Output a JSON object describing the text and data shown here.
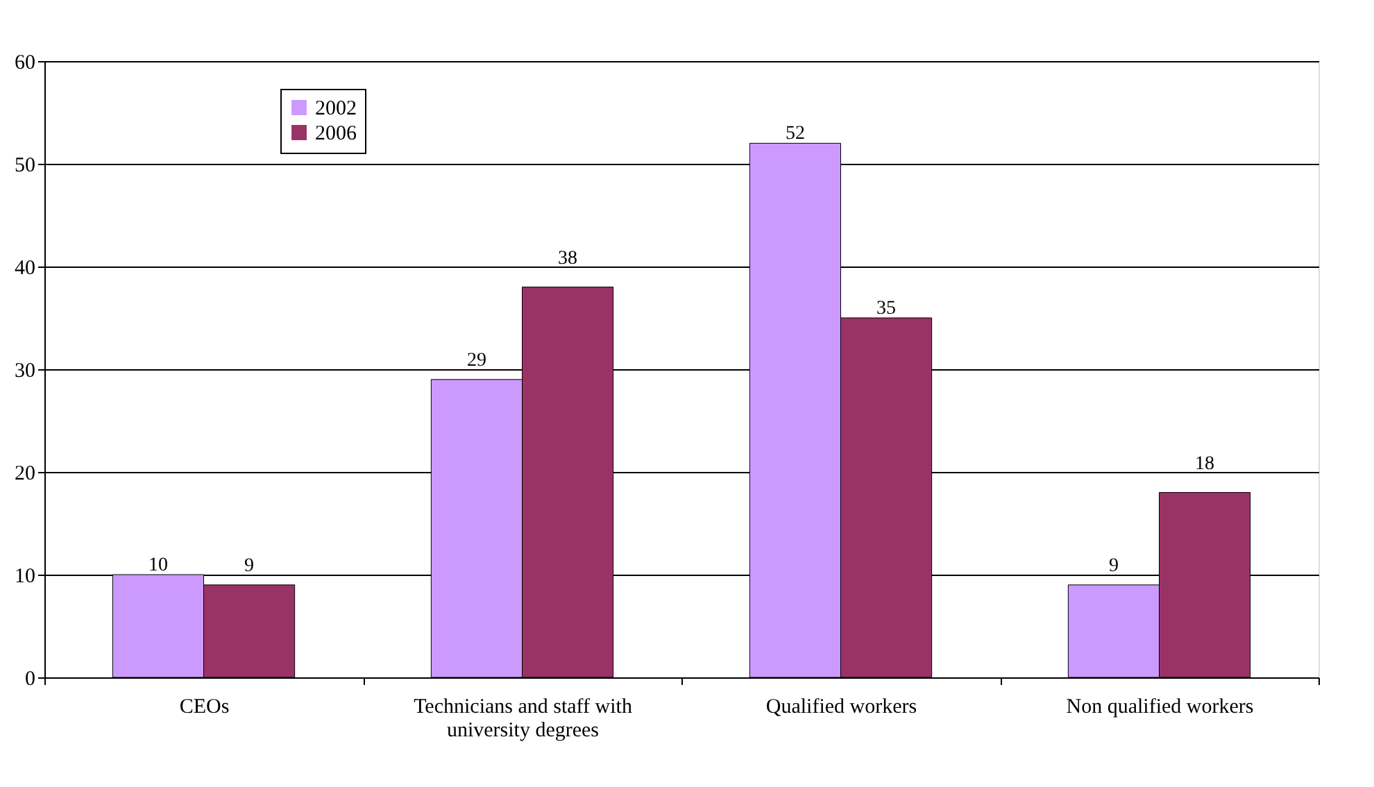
{
  "chart_data": {
    "type": "bar",
    "categories": [
      "CEOs",
      "Technicians and staff with university degrees",
      "Qualified workers",
      "Non qualified workers"
    ],
    "series": [
      {
        "name": "2002",
        "color": "#cc99ff",
        "values": [
          10,
          29,
          52,
          9
        ]
      },
      {
        "name": "2006",
        "color": "#993366",
        "values": [
          9,
          38,
          35,
          18
        ]
      }
    ],
    "ylim": [
      0,
      60
    ],
    "yticks": [
      0,
      10,
      20,
      30,
      40,
      50,
      60
    ],
    "grid": "y",
    "legend": "top left",
    "data_labels": true
  }
}
